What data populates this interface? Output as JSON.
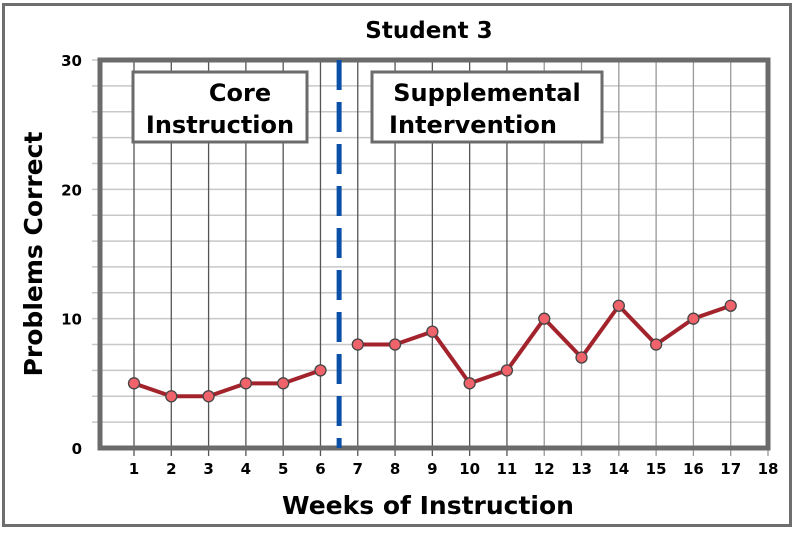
{
  "chart_data": {
    "type": "line",
    "title": "Student 3",
    "xlabel": "Weeks of Instruction",
    "ylabel": "Problems Correct",
    "x": [
      1,
      2,
      3,
      4,
      5,
      6,
      7,
      8,
      9,
      10,
      11,
      12,
      13,
      14,
      15,
      16,
      17
    ],
    "x_ticks": [
      1,
      2,
      3,
      4,
      5,
      6,
      7,
      8,
      9,
      10,
      11,
      12,
      13,
      14,
      15,
      16,
      17,
      18
    ],
    "y_ticks": [
      0,
      10,
      20,
      30
    ],
    "xlim": [
      0.1,
      18
    ],
    "ylim": [
      0,
      30
    ],
    "grid": true,
    "y_minor_grid_step": 2,
    "series": [
      {
        "name": "Problems Correct",
        "values": [
          5,
          4,
          4,
          5,
          5,
          6,
          8,
          8,
          9,
          5,
          6,
          10,
          7,
          11,
          8,
          10,
          11
        ],
        "color": "#a3232d",
        "marker_color": "#f0636b"
      }
    ],
    "phase_change_line": {
      "x": 6.5,
      "style": "dashed",
      "color": "#0a4fa8"
    },
    "annotations": [
      {
        "text_lines": [
          "Core",
          "Instruction"
        ],
        "phase": "baseline"
      },
      {
        "text_lines": [
          "Supplemental",
          "Intervention"
        ],
        "phase": "intervention"
      }
    ],
    "legend": "none"
  },
  "labels": {
    "title": "Student 3",
    "xlabel": "Weeks of Instruction",
    "ylabel": "Problems Correct",
    "phase1_line1": "Core",
    "phase1_line2": "Instruction",
    "phase2_line1": "Supplemental",
    "phase2_line2": "Intervention"
  }
}
